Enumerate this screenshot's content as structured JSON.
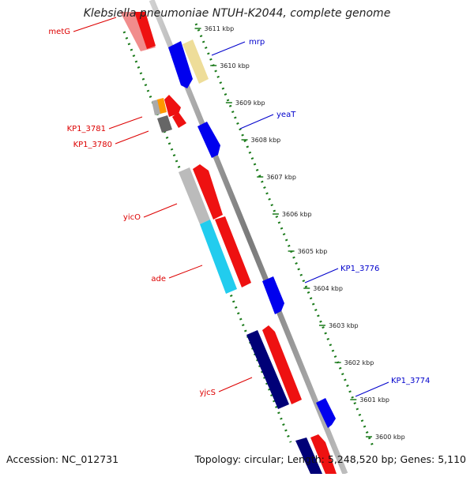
{
  "title": "Klebsiella pneumoniae NTUH-K2044, complete genome",
  "footer": {
    "accession": "Accession: NC_012731",
    "summary": "Topology: circular; Length: 5,248,520 bp; Genes: 5,110"
  },
  "colors": {
    "backbone": "#8c8c8c",
    "dotted_track": "#1a7a1a",
    "forward_label": "#0000cc",
    "reverse_label": "#dd0000"
  },
  "scale_labels": [
    "3611 kbp",
    "3610 kbp",
    "3609 kbp",
    "3608 kbp",
    "3607 kbp",
    "3606 kbp",
    "3605 kbp",
    "3604 kbp",
    "3603 kbp",
    "3602 kbp",
    "3601 kbp",
    "3600 kbp"
  ],
  "forward_gene_labels": [
    "mrp",
    "yeaT",
    "KP1_3776",
    "KP1_3774"
  ],
  "reverse_gene_labels": [
    "metG",
    "KP1_3781",
    "KP1_3780",
    "yicO",
    "ade",
    "yjcS"
  ]
}
